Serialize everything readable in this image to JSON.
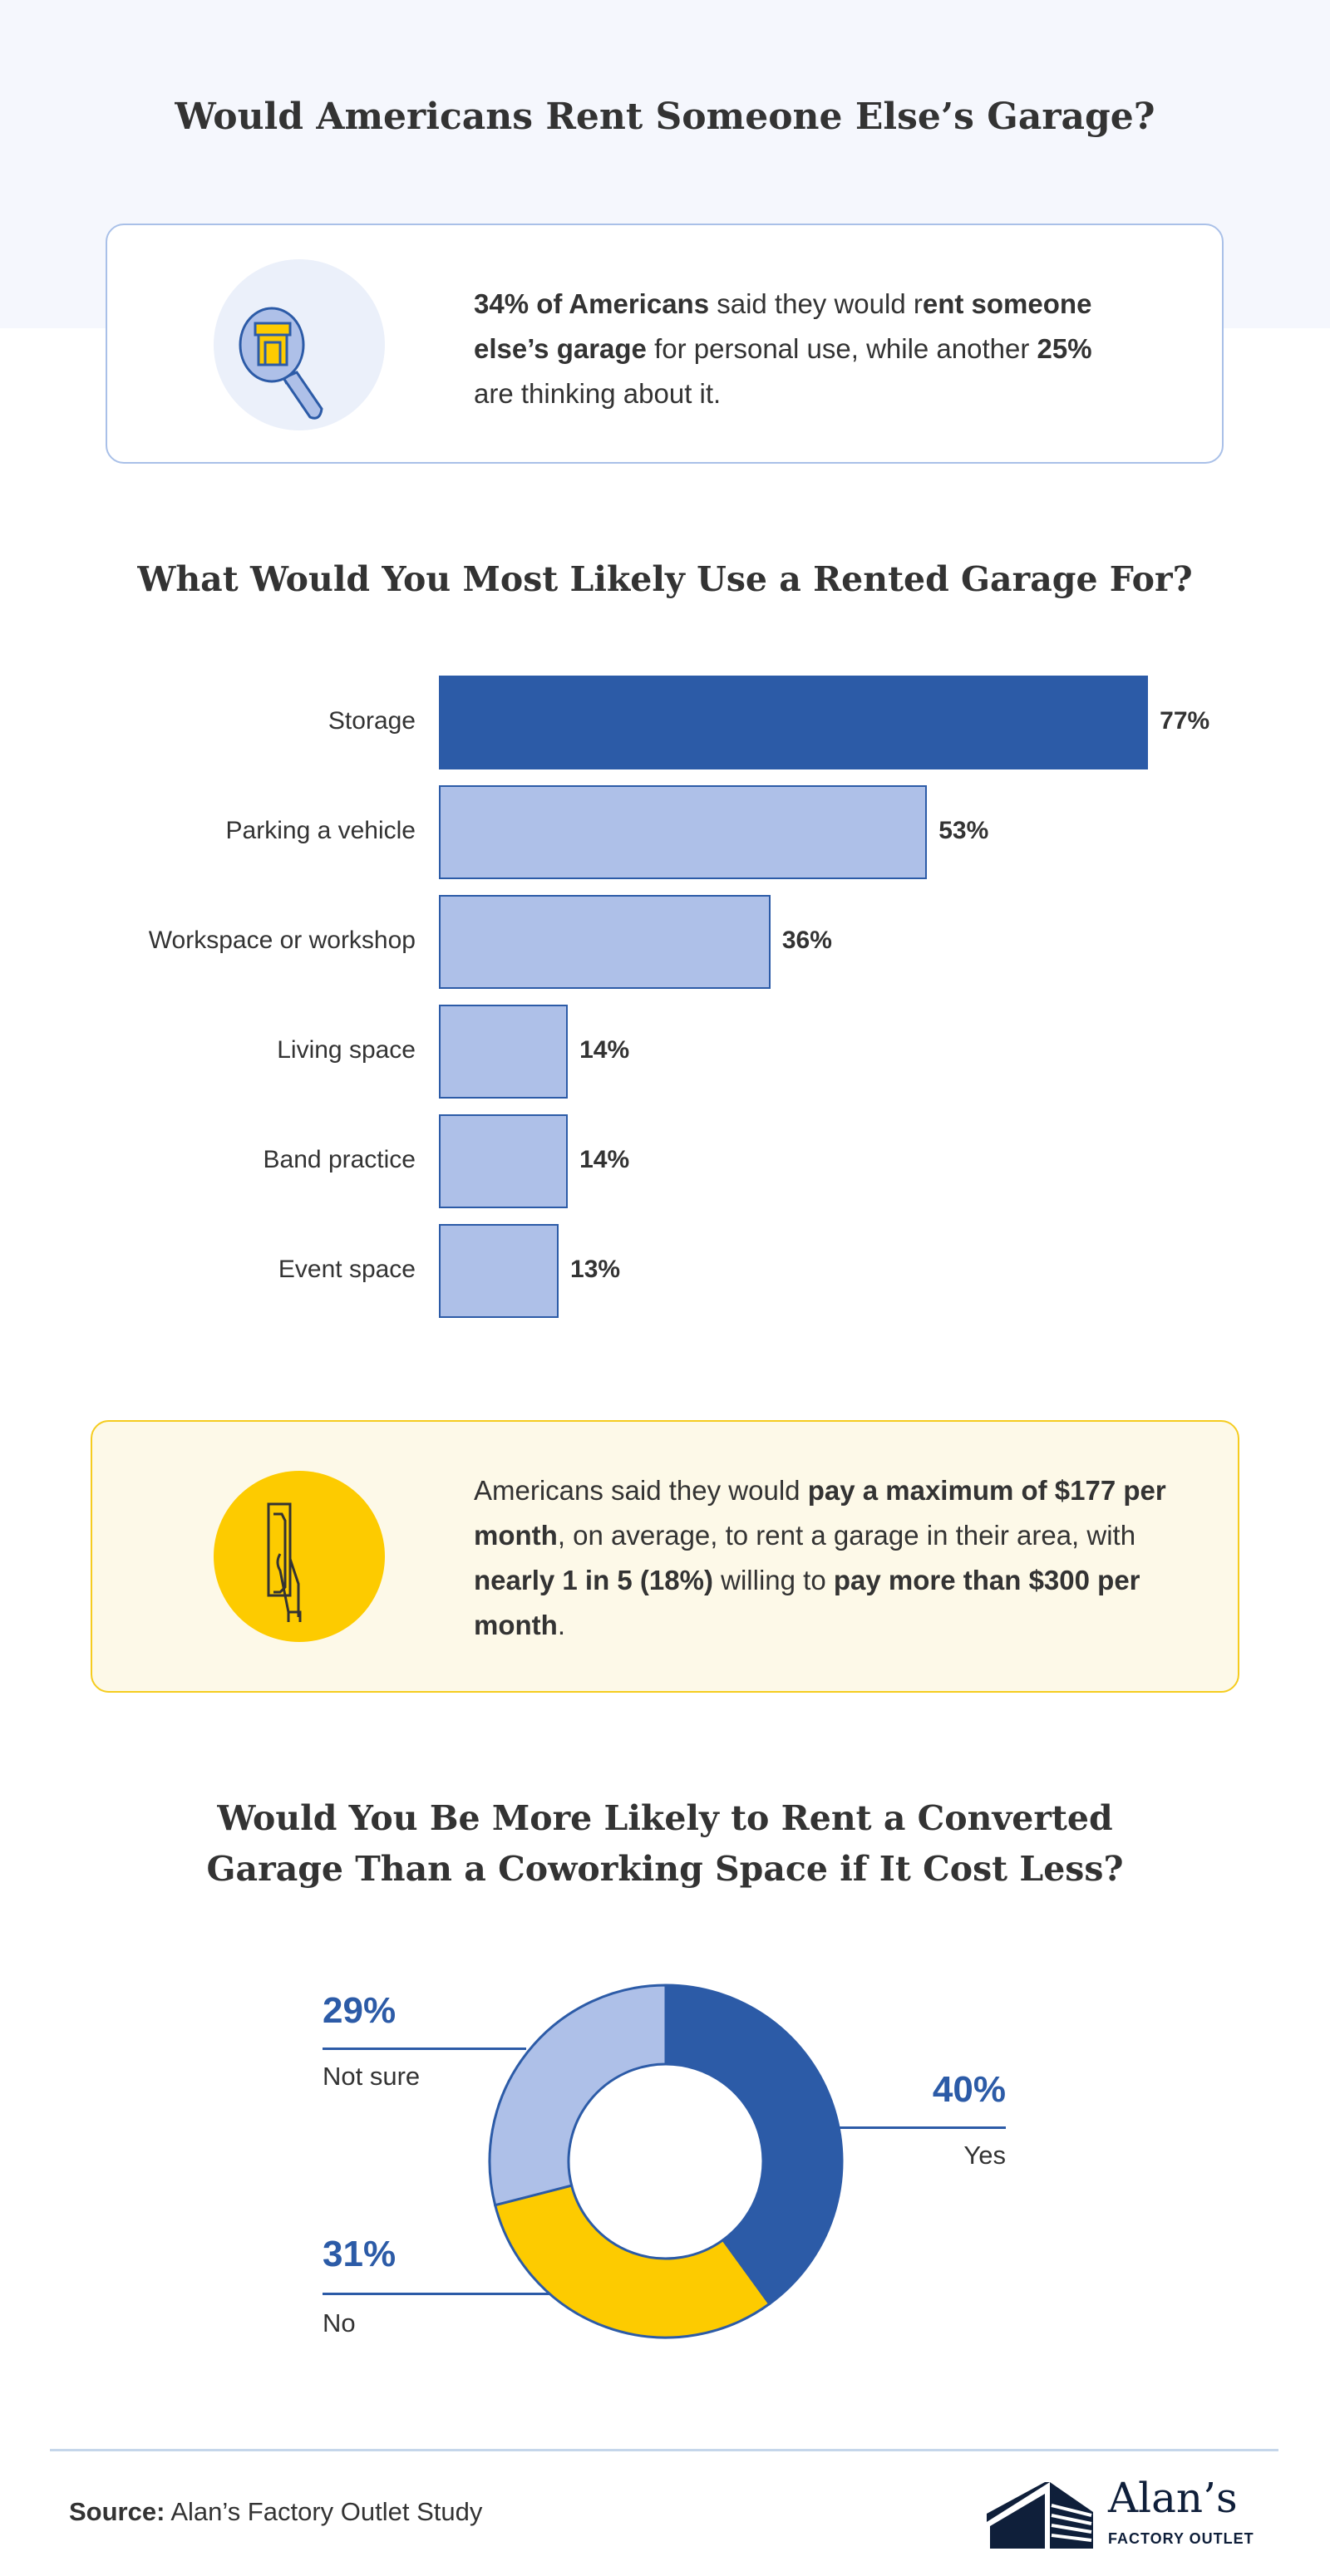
{
  "title": "Would Americans Rent Someone Else’s Garage?",
  "callout1": {
    "icon": "magnifier-garage-icon",
    "parts": [
      {
        "t": "34% of Americans",
        "b": true
      },
      {
        "t": " said they would r",
        "b": false
      },
      {
        "t": "ent someone else’s garage",
        "b": true
      },
      {
        "t": " for personal use, while another ",
        "b": false
      },
      {
        "t": "25%",
        "b": true
      },
      {
        "t": " are thinking about it.",
        "b": false
      }
    ]
  },
  "chart_data": [
    {
      "type": "bar",
      "orientation": "horizontal",
      "title": "What Would You Most Likely Use a Rented Garage For?",
      "categories": [
        "Storage",
        "Parking a vehicle",
        "Workspace or workshop",
        "Living space",
        "Band practice",
        "Event space"
      ],
      "values": [
        77,
        53,
        36,
        14,
        14,
        13
      ],
      "value_labels": [
        "77%",
        "53%",
        "36%",
        "14%",
        "14%",
        "13%"
      ],
      "highlight_color": "#2c5ba7",
      "bar_color": "#aec0e8"
    },
    {
      "type": "pie",
      "donut": true,
      "title": "Would You Be More Likely to Rent a Converted Garage Than a Coworking Space if It Cost Less?",
      "title_lines": [
        "Would You Be More Likely to Rent a Converted",
        "Garage Than a Coworking Space if It Cost Less?"
      ],
      "slices": [
        {
          "label": "Yes",
          "value": 40,
          "value_label": "40%",
          "color": "#2c5ba7"
        },
        {
          "label": "No",
          "value": 31,
          "value_label": "31%",
          "color": "#fdcb00"
        },
        {
          "label": "Not sure",
          "value": 29,
          "value_label": "29%",
          "color": "#aec0e8"
        }
      ]
    }
  ],
  "callout2": {
    "icon": "hand-holding-cash-icon",
    "parts": [
      {
        "t": "Americans said they would ",
        "b": false
      },
      {
        "t": "pay a maximum of $177 per month",
        "b": true
      },
      {
        "t": ", on average, to rent a garage in their area, with ",
        "b": false
      },
      {
        "t": "nearly 1 in 5 (18%)",
        "b": true
      },
      {
        "t": " willing to ",
        "b": false
      },
      {
        "t": "pay more than $300 per month",
        "b": true
      },
      {
        "t": ".",
        "b": false
      }
    ]
  },
  "footer": {
    "source_label": "Source:",
    "source_text": " Alan’s Factory Outlet Study",
    "logo_name": "Alan’s",
    "logo_sub": "FACTORY OUTLET"
  }
}
